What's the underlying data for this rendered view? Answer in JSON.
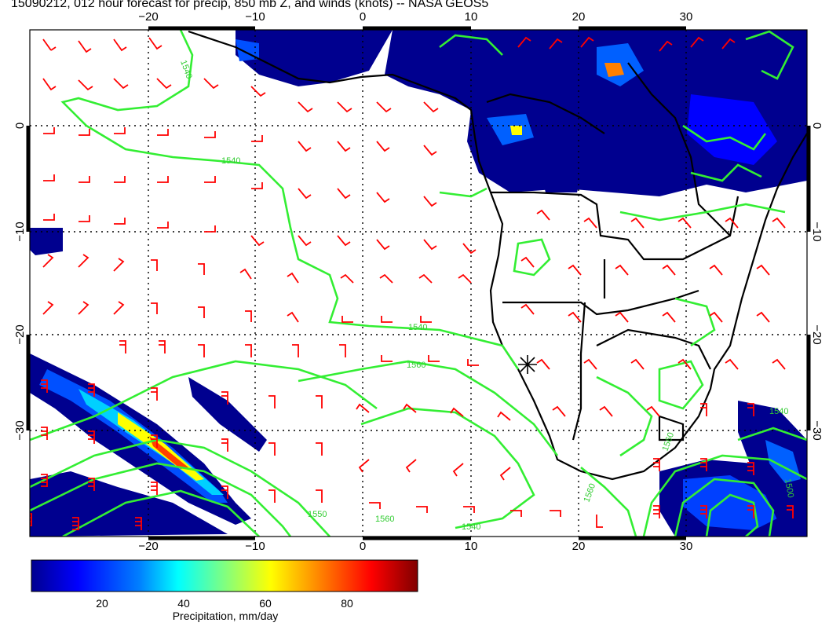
{
  "title": "15090212, 012 hour forecast for precip, 850 mb Z, and winds (knots) -- NASA GEOS5",
  "map": {
    "lon_range": [
      -30,
      41
    ],
    "lat_range": [
      -40,
      8
    ],
    "lon_ticks": [
      -20,
      -10,
      0,
      10,
      20,
      30
    ],
    "lat_ticks": [
      0,
      -10,
      -20,
      -30
    ],
    "lon_tick_labels": [
      "−20",
      "−10",
      "0",
      "10",
      "20",
      "30"
    ],
    "lat_tick_labels": [
      "0",
      "−10",
      "−20",
      "−30"
    ],
    "colors": {
      "wind_barbs": "#ff0000",
      "height_contours": "#33ee33",
      "coastlines": "#000000",
      "precip_low": "#00008f",
      "precip_high": "#800000"
    },
    "contour_labels": [
      "1540",
      "1540",
      "1540",
      "1560",
      "1560",
      "1540",
      "1560",
      "1540",
      "1560",
      "1500",
      "1550"
    ],
    "station_marker": "asterisk-icon"
  },
  "colorbar": {
    "title": "Precipitation, mm/day",
    "range": [
      0,
      100
    ],
    "ticks": [
      20,
      40,
      60,
      80
    ],
    "tick_labels": [
      "20",
      "40",
      "60",
      "80"
    ],
    "colormap": [
      "#00008f",
      "#0000ff",
      "#0080ff",
      "#00ffff",
      "#80ff80",
      "#ffff00",
      "#ff8000",
      "#ff0000",
      "#800000"
    ]
  }
}
